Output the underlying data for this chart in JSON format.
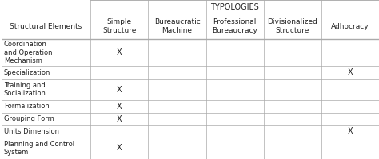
{
  "title": "TYPOLOGIES",
  "col_headers": [
    "Simple\nStructure",
    "Bureaucratic\nMachine",
    "Professional\nBureaucracy",
    "Divisionalized\nStructure",
    "Adhocracy"
  ],
  "row_label": "Structural Elements",
  "row_headers": [
    "Coordination\nand Operation\nMechanism",
    "Specialization",
    "Training and\nSocialization",
    "Formalization",
    "Grouping Form",
    "Units Dimension",
    "Planning and Control\nSystem"
  ],
  "marks": [
    [
      1,
      0,
      0,
      0,
      0
    ],
    [
      0,
      0,
      0,
      0,
      1
    ],
    [
      1,
      0,
      0,
      0,
      0
    ],
    [
      1,
      0,
      0,
      0,
      0
    ],
    [
      1,
      0,
      0,
      0,
      0
    ],
    [
      0,
      0,
      0,
      0,
      1
    ],
    [
      1,
      0,
      0,
      0,
      0
    ]
  ],
  "bg_color": "#ffffff",
  "line_color": "#aaaaaa",
  "text_color": "#222222",
  "font_size": 6.5
}
